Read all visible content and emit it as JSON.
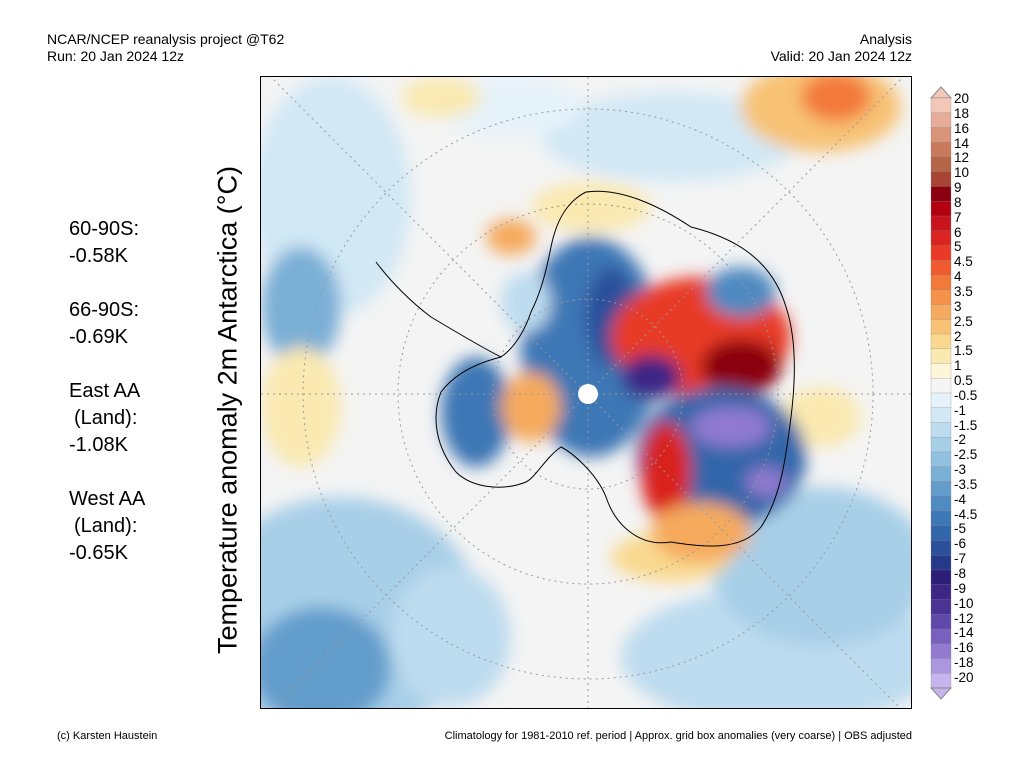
{
  "header": {
    "left_line1": "NCAR/NCEP reanalysis project @T62",
    "left_line2": "Run: 20 Jan 2024 12z",
    "right_line1": "Analysis",
    "right_line2": "Valid: 20 Jan 2024 12z"
  },
  "axis_label": "Temperature anomaly 2m Antarctica (°C)",
  "stats": [
    {
      "label": "60-90S:",
      "value": "-0.58K"
    },
    {
      "label": "66-90S:",
      "value": "-0.69K"
    },
    {
      "label": "East AA",
      "label2": "(Land):",
      "value": "-1.08K"
    },
    {
      "label": "West AA",
      "label2": "(Land):",
      "value": "-0.65K"
    }
  ],
  "colorbar": {
    "labels": [
      "20",
      "18",
      "16",
      "14",
      "12",
      "10",
      "9",
      "8",
      "7",
      "6",
      "5",
      "4.5",
      "4",
      "3.5",
      "3",
      "2.5",
      "2",
      "1.5",
      "1",
      "0.5",
      "-0.5",
      "-1",
      "-1.5",
      "-2",
      "-2.5",
      "-3",
      "-3.5",
      "-4",
      "-4.5",
      "-5",
      "-6",
      "-7",
      "-8",
      "-9",
      "-10",
      "-12",
      "-14",
      "-16",
      "-18",
      "-20"
    ],
    "colors": [
      "#f2c7b8",
      "#e6ad98",
      "#d99378",
      "#c97a5c",
      "#b46447",
      "#a84434",
      "#8b0010",
      "#b30010",
      "#c8141d",
      "#d9241f",
      "#e83a26",
      "#ef5a2e",
      "#f3793b",
      "#f49249",
      "#f5aa5d",
      "#f7c275",
      "#f9d98f",
      "#fae9b0",
      "#fdf6d8",
      "#f5f5f5",
      "#e5f2fa",
      "#d2e8f5",
      "#bddcef",
      "#a8cfe8",
      "#91c0e0",
      "#7aafd6",
      "#649dcc",
      "#4f8ac1",
      "#3e77b5",
      "#3166aa",
      "#2a509b",
      "#25398a",
      "#2b1d78",
      "#3d2685",
      "#4a3394",
      "#5f48ab",
      "#7860bf",
      "#917ad0",
      "#ab96df",
      "#c6b5ec"
    ]
  },
  "footer": {
    "left": "(c) Karsten Haustein",
    "right": "Climatology for 1981-2010 ref. period | Approx. grid box anomalies (very coarse) | OBS adjusted"
  }
}
